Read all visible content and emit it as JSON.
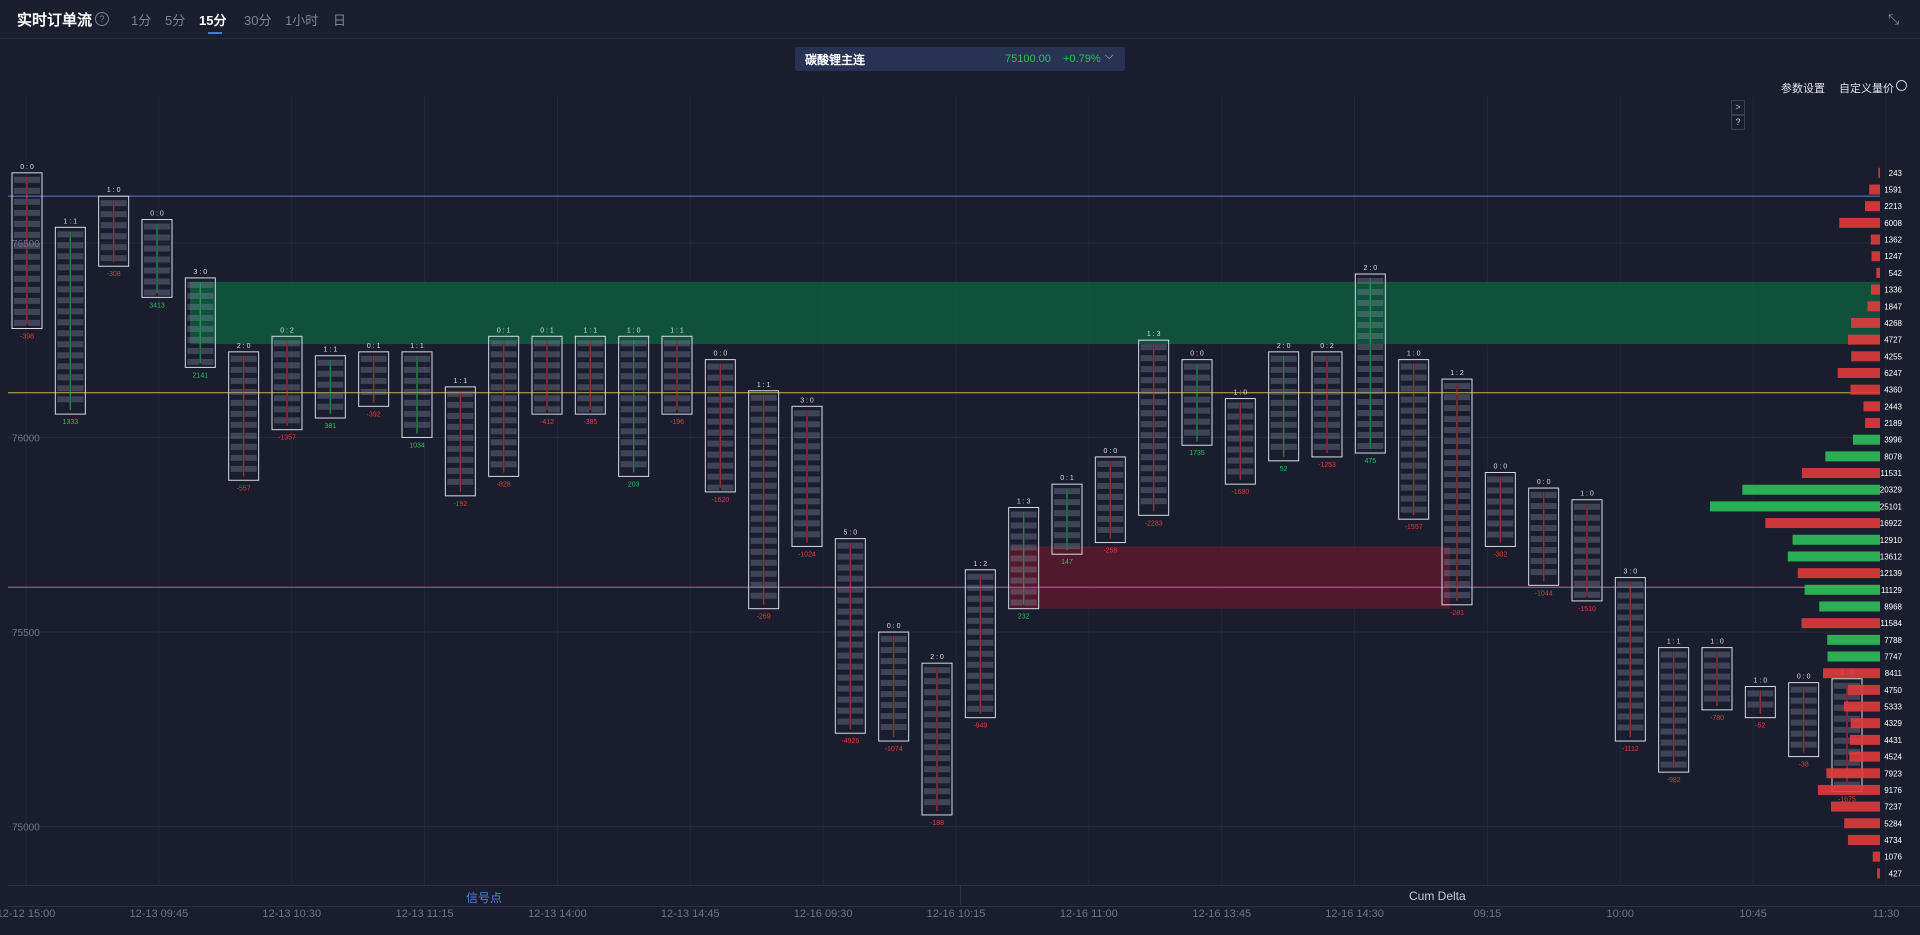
{
  "header": {
    "title": "实时订单流",
    "help": "?",
    "timeframes": [
      "1分",
      "5分",
      "15分",
      "30分",
      "1小时",
      "日"
    ],
    "active_timeframe": "15分"
  },
  "symbol": {
    "name": "碳酸锂主连",
    "price": "75100.00",
    "change": "+0.79%"
  },
  "options": {
    "params": "参数设置",
    "custom_vp": "自定义量价"
  },
  "side_buttons": [
    ">",
    "?"
  ],
  "panels": {
    "left": "信号点",
    "right": "Cum Delta"
  },
  "colors": {
    "bg": "#1a1d2e",
    "buy": "#2fbf5a",
    "sell": "#e03c3c",
    "neutral": "#3a5fb0",
    "zone_green": "#0f5a3e",
    "zone_red": "#5a1a2c"
  },
  "chart_data": {
    "type": "footprint",
    "ylim": [
      74850,
      76880
    ],
    "y_ticks": [
      76500,
      76000,
      75500,
      75000
    ],
    "y_tick_labels": [
      "76500",
      "76000",
      "75500",
      "75000"
    ],
    "x_labels": [
      "12-12 15:00",
      "12-13 09:45",
      "12-13 10:30",
      "12-13 11:15",
      "12-13 14:00",
      "12-13 14:45",
      "12-16 09:30",
      "12-16 10:15",
      "12-16 11:00",
      "12-16 13:45",
      "12-16 14:30",
      "09:15",
      "10:00",
      "10:45",
      "11:30"
    ],
    "levels": {
      "blue": 76620,
      "yellow": 76115,
      "pink": 75615
    },
    "zones": [
      {
        "color": "green",
        "from": 76240,
        "to": 76400
      },
      {
        "color": "red",
        "from": 75560,
        "to": 75720
      }
    ],
    "candles": [
      {
        "ratio": "0 : 0",
        "high": 76680,
        "low": 76280,
        "delta": -398
      },
      {
        "ratio": "1 : 1",
        "high": 76540,
        "low": 76060,
        "delta": 1333
      },
      {
        "ratio": "1 : 0",
        "high": 76620,
        "low": 76440,
        "delta": -308
      },
      {
        "ratio": "0 : 0",
        "high": 76560,
        "low": 76360,
        "delta": 3413
      },
      {
        "ratio": "3 : 0",
        "high": 76410,
        "low": 76180,
        "delta": 2141
      },
      {
        "ratio": "2 : 0",
        "high": 76220,
        "low": 75890,
        "delta": -557
      },
      {
        "ratio": "0 : 2",
        "high": 76260,
        "low": 76020,
        "delta": -1357
      },
      {
        "ratio": "1 : 1",
        "high": 76210,
        "low": 76050,
        "delta": 381
      },
      {
        "ratio": "0 : 1",
        "high": 76220,
        "low": 76080,
        "delta": -392
      },
      {
        "ratio": "1 : 1",
        "high": 76220,
        "low": 76000,
        "delta": 1034
      },
      {
        "ratio": "1 : 1",
        "high": 76130,
        "low": 75850,
        "delta": -192
      },
      {
        "ratio": "0 : 1",
        "high": 76260,
        "low": 75900,
        "delta": -828
      },
      {
        "ratio": "0 : 1",
        "high": 76260,
        "low": 76060,
        "delta": -412
      },
      {
        "ratio": "1 : 1",
        "high": 76260,
        "low": 76060,
        "delta": -385
      },
      {
        "ratio": "1 : 0",
        "high": 76260,
        "low": 75900,
        "delta": 203
      },
      {
        "ratio": "1 : 1",
        "high": 76260,
        "low": 76060,
        "delta": -196
      },
      {
        "ratio": "0 : 0",
        "high": 76200,
        "low": 75860,
        "delta": -1620
      },
      {
        "ratio": "1 : 1",
        "high": 76120,
        "low": 75560,
        "delta": -269
      },
      {
        "ratio": "3 : 0",
        "high": 76080,
        "low": 75720,
        "delta": -1024
      },
      {
        "ratio": "5 : 0",
        "high": 75740,
        "low": 75240,
        "delta": -4926
      },
      {
        "ratio": "0 : 0",
        "high": 75500,
        "low": 75220,
        "delta": -1074
      },
      {
        "ratio": "2 : 0",
        "high": 75420,
        "low": 75030,
        "delta": -188
      },
      {
        "ratio": "1 : 2",
        "high": 75660,
        "low": 75280,
        "delta": -949
      },
      {
        "ratio": "1 : 3",
        "high": 75820,
        "low": 75560,
        "delta": 232
      },
      {
        "ratio": "0 : 1",
        "high": 75880,
        "low": 75700,
        "delta": 147
      },
      {
        "ratio": "0 : 0",
        "high": 75950,
        "low": 75730,
        "delta": -258
      },
      {
        "ratio": "1 : 3",
        "high": 76250,
        "low": 75800,
        "delta": -2283
      },
      {
        "ratio": "0 : 0",
        "high": 76200,
        "low": 75980,
        "delta": 1735
      },
      {
        "ratio": "1 : 0",
        "high": 76100,
        "low": 75880,
        "delta": -1680
      },
      {
        "ratio": "2 : 0",
        "high": 76220,
        "low": 75940,
        "delta": 52
      },
      {
        "ratio": "0 : 2",
        "high": 76220,
        "low": 75950,
        "delta": -1253
      },
      {
        "ratio": "2 : 0",
        "high": 76420,
        "low": 75960,
        "delta": 475
      },
      {
        "ratio": "1 : 0",
        "high": 76200,
        "low": 75790,
        "delta": -1557
      },
      {
        "ratio": "1 : 2",
        "high": 76150,
        "low": 75570,
        "delta": -281
      },
      {
        "ratio": "0 : 0",
        "high": 75910,
        "low": 75720,
        "delta": -302
      },
      {
        "ratio": "0 : 0",
        "high": 75870,
        "low": 75620,
        "delta": -1044
      },
      {
        "ratio": "1 : 0",
        "high": 75840,
        "low": 75580,
        "delta": -1510
      },
      {
        "ratio": "3 : 0",
        "high": 75640,
        "low": 75220,
        "delta": -1112
      },
      {
        "ratio": "1 : 1",
        "high": 75460,
        "low": 75140,
        "delta": -982
      },
      {
        "ratio": "1 : 0",
        "high": 75460,
        "low": 75300,
        "delta": -780
      },
      {
        "ratio": "1 : 0",
        "high": 75360,
        "low": 75280,
        "delta": -52
      },
      {
        "ratio": "0 : 0",
        "high": 75370,
        "low": 75180,
        "delta": -38
      },
      {
        "ratio": "2 : 0",
        "high": 75380,
        "low": 75090,
        "delta": -1675
      }
    ],
    "profile_labels": [
      "243",
      "1591",
      "2213",
      "6008",
      "1362",
      "1247",
      "542",
      "1336",
      "1847",
      "4268",
      "4727",
      "4255",
      "6247",
      "4360",
      "2443",
      "2189",
      "3996",
      "8078",
      "11531",
      "20329",
      "25101",
      "16922",
      "12910",
      "13612",
      "12139",
      "11129",
      "8968",
      "11584",
      "7788",
      "7747",
      "8411",
      "4750",
      "5333",
      "4329",
      "4431",
      "4524",
      "7923",
      "9176",
      "7237",
      "5284",
      "4734",
      "1076",
      "427"
    ]
  }
}
